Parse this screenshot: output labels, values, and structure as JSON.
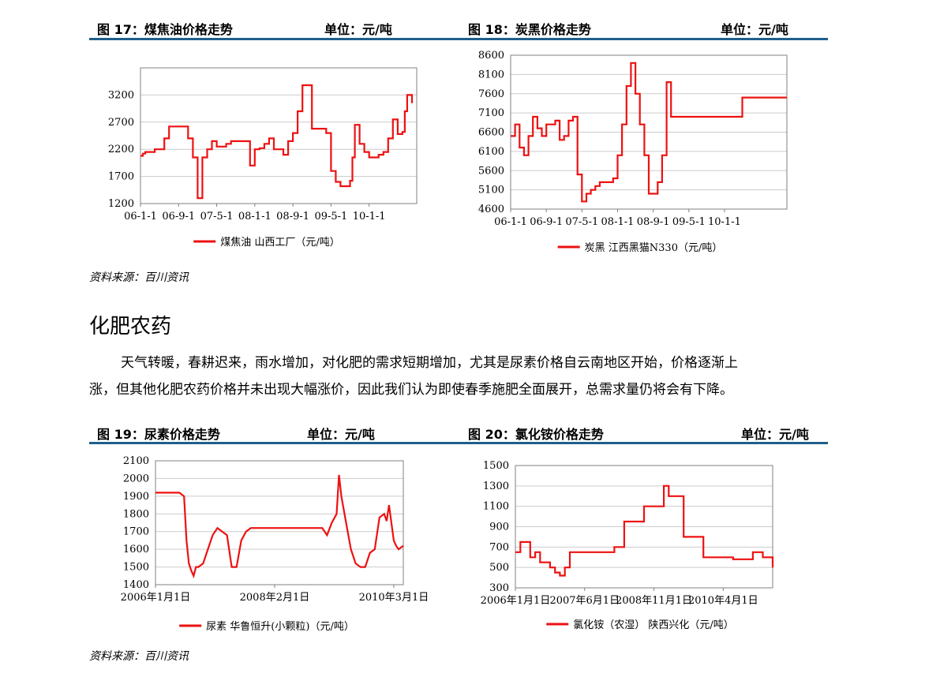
{
  "figures": [
    {
      "title": "图 17：煤焦油价格走势",
      "unit": "单位：元/吨"
    },
    {
      "title": "图 18：炭黑价格走势",
      "unit": "单位：元/吨"
    },
    {
      "title": "图 19：尿素价格走势",
      "unit": "单位：元/吨"
    },
    {
      "title": "图 20：氯化铵价格走势",
      "unit": "单位：元/吨"
    }
  ],
  "source_text": "资料来源：百川资讯",
  "section": {
    "title": "化肥农药",
    "paragraph_line1": "天气转暖，春耕迟来，雨水增加，对化肥的需求短期增加，尤其是尿素价格自云南地区开始，价格逐渐上",
    "paragraph_line2": "涨，但其他化肥农药价格并未出现大幅涨价，因此我们认为即使春季施肥全面展开，总需求量仍将会有下降。"
  },
  "colors": {
    "series": "#ee1111",
    "rule": "#1f5f8b",
    "grid": "#cccccc"
  },
  "chart_data": [
    {
      "type": "line",
      "ylim": [
        1200,
        3700
      ],
      "yticks": [
        1200,
        1700,
        2200,
        2700,
        3200
      ],
      "xlim": [
        0,
        58
      ],
      "xtick_labels": [
        "06-1-1",
        "06-9-1",
        "07-5-1",
        "08-1-1",
        "08-9-1",
        "09-5-1",
        "10-1-1"
      ],
      "xtick_positions": [
        0,
        8,
        16,
        24,
        32,
        40,
        48
      ],
      "grid": true,
      "legend_position": "bottom",
      "series": [
        {
          "name": "煤焦油 山西工厂（元/吨）",
          "step": true,
          "x": [
            0,
            0.5,
            1,
            2,
            3,
            4,
            5,
            6,
            7,
            8,
            9,
            9.5,
            10,
            11,
            12,
            13,
            14,
            15,
            16,
            17,
            18,
            19,
            20,
            21,
            22,
            23,
            24,
            25,
            26,
            27,
            28,
            29,
            30,
            31,
            32,
            33,
            34,
            35,
            36,
            37,
            38,
            39,
            40,
            41,
            42,
            43,
            44,
            44.5,
            45,
            46,
            47,
            48,
            49,
            50,
            51,
            52,
            53,
            54,
            55,
            55.5,
            56,
            57
          ],
          "y": [
            2080,
            2120,
            2150,
            2150,
            2200,
            2200,
            2400,
            2620,
            2620,
            2620,
            2620,
            2620,
            2400,
            2050,
            1300,
            2050,
            2200,
            2350,
            2250,
            2250,
            2300,
            2350,
            2350,
            2350,
            2350,
            1900,
            2200,
            2220,
            2300,
            2400,
            2200,
            2200,
            2100,
            2350,
            2500,
            2900,
            3380,
            3380,
            2580,
            2580,
            2580,
            2500,
            1800,
            1600,
            1520,
            1520,
            1620,
            2050,
            2650,
            2300,
            2150,
            2050,
            2050,
            2100,
            2150,
            2400,
            2750,
            2480,
            2520,
            2900,
            3200,
            3050
          ]
        }
      ]
    },
    {
      "type": "line",
      "ylim": [
        4600,
        8600
      ],
      "yticks": [
        4600,
        5100,
        5600,
        6100,
        6600,
        7100,
        7600,
        8100,
        8600
      ],
      "xlim": [
        0,
        62
      ],
      "xtick_labels": [
        "06-1-1",
        "06-9-1",
        "07-5-1",
        "08-1-1",
        "08-9-1",
        "09-5-1",
        "10-1-1"
      ],
      "xtick_positions": [
        0,
        8,
        16,
        24,
        32,
        40,
        48
      ],
      "grid": true,
      "legend_position": "bottom",
      "series": [
        {
          "name": "炭黑 江西黑猫N330（元/吨）",
          "step": true,
          "x": [
            0,
            1,
            2,
            3,
            4,
            5,
            6,
            7,
            8,
            9,
            10,
            11,
            12,
            13,
            14,
            15,
            16,
            17,
            18,
            19,
            20,
            21,
            22,
            23,
            24,
            25,
            26,
            27,
            28,
            29,
            30,
            31,
            32,
            33,
            34,
            35,
            36,
            37,
            38,
            39,
            40,
            41,
            42,
            43,
            44,
            46,
            48,
            50,
            52,
            53,
            54,
            56,
            58,
            60,
            62
          ],
          "y": [
            6500,
            6800,
            6200,
            6000,
            6500,
            7000,
            6700,
            6500,
            6800,
            6800,
            6900,
            6400,
            6500,
            6900,
            7000,
            5500,
            4800,
            5000,
            5100,
            5200,
            5300,
            5300,
            5300,
            5400,
            6000,
            6800,
            7800,
            8400,
            7600,
            6800,
            6000,
            5000,
            5000,
            5300,
            6000,
            7900,
            7000,
            7000,
            7000,
            7000,
            7000,
            7000,
            7000,
            7000,
            7000,
            7000,
            7000,
            7000,
            7500,
            7500,
            7500,
            7500,
            7500,
            7500,
            7500
          ]
        }
      ]
    },
    {
      "type": "line",
      "ylim": [
        1400,
        2100
      ],
      "yticks": [
        1400,
        1500,
        1600,
        1700,
        1800,
        1900,
        2000,
        2100
      ],
      "xlim": [
        0,
        52
      ],
      "xtick_labels": [
        "2006年1月1日",
        "2008年2月1日",
        "2010年3月1日"
      ],
      "xtick_positions": [
        0,
        25,
        50
      ],
      "grid": true,
      "legend_position": "bottom",
      "series": [
        {
          "name": "尿素 华鲁恒升(小颗粒)（元/吨）",
          "step": false,
          "x": [
            0,
            5,
            6,
            6.5,
            7,
            7.5,
            8,
            8.5,
            9,
            10,
            11,
            12,
            13,
            14,
            15,
            16,
            17,
            18,
            19,
            20,
            21,
            22,
            23,
            24,
            25,
            30,
            33,
            35,
            36,
            37,
            38,
            38.5,
            39,
            40,
            41,
            42,
            43,
            44,
            45,
            46,
            47,
            48,
            48.5,
            49,
            50,
            50.5,
            51,
            52
          ],
          "y": [
            1920,
            1920,
            1900,
            1650,
            1520,
            1480,
            1450,
            1500,
            1500,
            1520,
            1600,
            1680,
            1720,
            1700,
            1680,
            1500,
            1500,
            1650,
            1700,
            1720,
            1720,
            1720,
            1720,
            1720,
            1720,
            1720,
            1720,
            1720,
            1680,
            1750,
            1800,
            2020,
            1900,
            1750,
            1600,
            1520,
            1500,
            1500,
            1580,
            1600,
            1780,
            1800,
            1760,
            1850,
            1650,
            1620,
            1600,
            1620
          ]
        }
      ]
    },
    {
      "type": "line",
      "ylim": [
        300,
        1500
      ],
      "yticks": [
        300,
        500,
        700,
        900,
        1100,
        1300,
        1500
      ],
      "xlim": [
        0,
        52
      ],
      "xtick_labels": [
        "2006年1月1日",
        "2007年6月1日",
        "2008年11月1日",
        "2010年4月1日"
      ],
      "xtick_positions": [
        0,
        14,
        28,
        42
      ],
      "grid": true,
      "legend_position": "bottom",
      "series": [
        {
          "name": "氯化铵（农湿） 陕西兴化（元/吨）",
          "step": true,
          "x": [
            0,
            1,
            2,
            3,
            4,
            5,
            6,
            7,
            8,
            9,
            10,
            11,
            12,
            13,
            14,
            16,
            18,
            20,
            22,
            24,
            26,
            28,
            30,
            31,
            32,
            34,
            36,
            38,
            40,
            42,
            44,
            46,
            48,
            50,
            52
          ],
          "y": [
            650,
            750,
            750,
            600,
            650,
            550,
            550,
            500,
            450,
            420,
            500,
            650,
            650,
            650,
            650,
            650,
            650,
            700,
            950,
            950,
            1100,
            1100,
            1300,
            1200,
            1200,
            800,
            800,
            600,
            600,
            600,
            580,
            580,
            650,
            600,
            500
          ]
        }
      ]
    }
  ]
}
